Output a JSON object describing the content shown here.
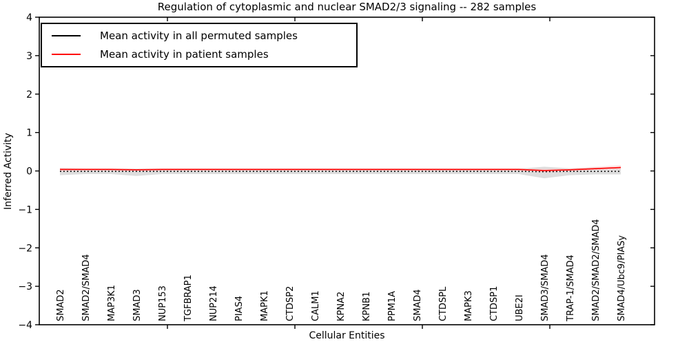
{
  "chart_data": {
    "type": "line",
    "title": "Regulation of cytoplasmic and nuclear SMAD2/3 signaling -- 282 samples",
    "xlabel": "Cellular Entities",
    "ylabel": "Inferred Activity",
    "ylim": [
      -4,
      4
    ],
    "ytick_labels": [
      "4",
      "3",
      "2",
      "1",
      "0",
      "−1",
      "−2",
      "−3",
      "−4"
    ],
    "ytick_values": [
      4,
      3,
      2,
      1,
      0,
      -1,
      -2,
      -3,
      -4
    ],
    "grid": false,
    "legend_position": "upper left",
    "categories": [
      "SMAD2",
      "SMAD2/SMAD4",
      "MAP3K1",
      "SMAD3",
      "NUP153",
      "TGFBRAP1",
      "NUP214",
      "PIAS4",
      "MAPK1",
      "CTDSP2",
      "CALM1",
      "KPNA2",
      "KPNB1",
      "PPM1A",
      "SMAD4",
      "CTDSPL",
      "MAPK3",
      "CTDSP1",
      "UBE2I",
      "SMAD3/SMAD4",
      "TRAP-1/SMAD4",
      "SMAD2/SMAD2/SMAD4",
      "SMAD4/Ubc9/PIASy"
    ],
    "series": [
      {
        "name": "Mean activity in all permuted samples",
        "color": "#000000",
        "style": "dotted",
        "values": [
          -0.01,
          -0.01,
          -0.01,
          -0.01,
          -0.01,
          -0.01,
          -0.01,
          -0.01,
          -0.01,
          -0.01,
          -0.01,
          -0.01,
          -0.01,
          -0.01,
          -0.01,
          -0.01,
          -0.01,
          -0.01,
          -0.01,
          -0.02,
          -0.01,
          -0.01,
          -0.01
        ],
        "band_upper_offset": [
          0.09,
          0.07,
          0.07,
          0.07,
          0.07,
          0.07,
          0.07,
          0.07,
          0.07,
          0.07,
          0.07,
          0.07,
          0.07,
          0.07,
          0.07,
          0.07,
          0.07,
          0.07,
          0.07,
          0.13,
          0.08,
          0.1,
          0.08
        ],
        "band_lower_offset": [
          0.1,
          0.07,
          0.07,
          0.12,
          0.07,
          0.07,
          0.07,
          0.07,
          0.07,
          0.07,
          0.07,
          0.07,
          0.07,
          0.07,
          0.07,
          0.07,
          0.07,
          0.07,
          0.07,
          0.17,
          0.1,
          0.08,
          0.08
        ],
        "band_color": "#d9d9d9"
      },
      {
        "name": "Mean activity in patient samples",
        "color": "#ff0000",
        "style": "solid",
        "values": [
          0.04,
          0.04,
          0.04,
          0.03,
          0.04,
          0.04,
          0.04,
          0.04,
          0.04,
          0.04,
          0.04,
          0.04,
          0.04,
          0.04,
          0.04,
          0.04,
          0.04,
          0.04,
          0.04,
          0.01,
          0.03,
          0.06,
          0.09
        ],
        "band_upper_offset": [
          0.04,
          0.03,
          0.03,
          0.03,
          0.03,
          0.03,
          0.03,
          0.03,
          0.03,
          0.03,
          0.03,
          0.03,
          0.03,
          0.03,
          0.03,
          0.03,
          0.03,
          0.03,
          0.03,
          0.05,
          0.04,
          0.05,
          0.06
        ],
        "band_lower_offset": [
          0.05,
          0.03,
          0.03,
          0.04,
          0.03,
          0.03,
          0.03,
          0.03,
          0.03,
          0.03,
          0.03,
          0.03,
          0.03,
          0.03,
          0.03,
          0.03,
          0.03,
          0.03,
          0.03,
          0.05,
          0.04,
          0.04,
          0.05
        ],
        "band_color": "#ffc8c8"
      }
    ]
  }
}
